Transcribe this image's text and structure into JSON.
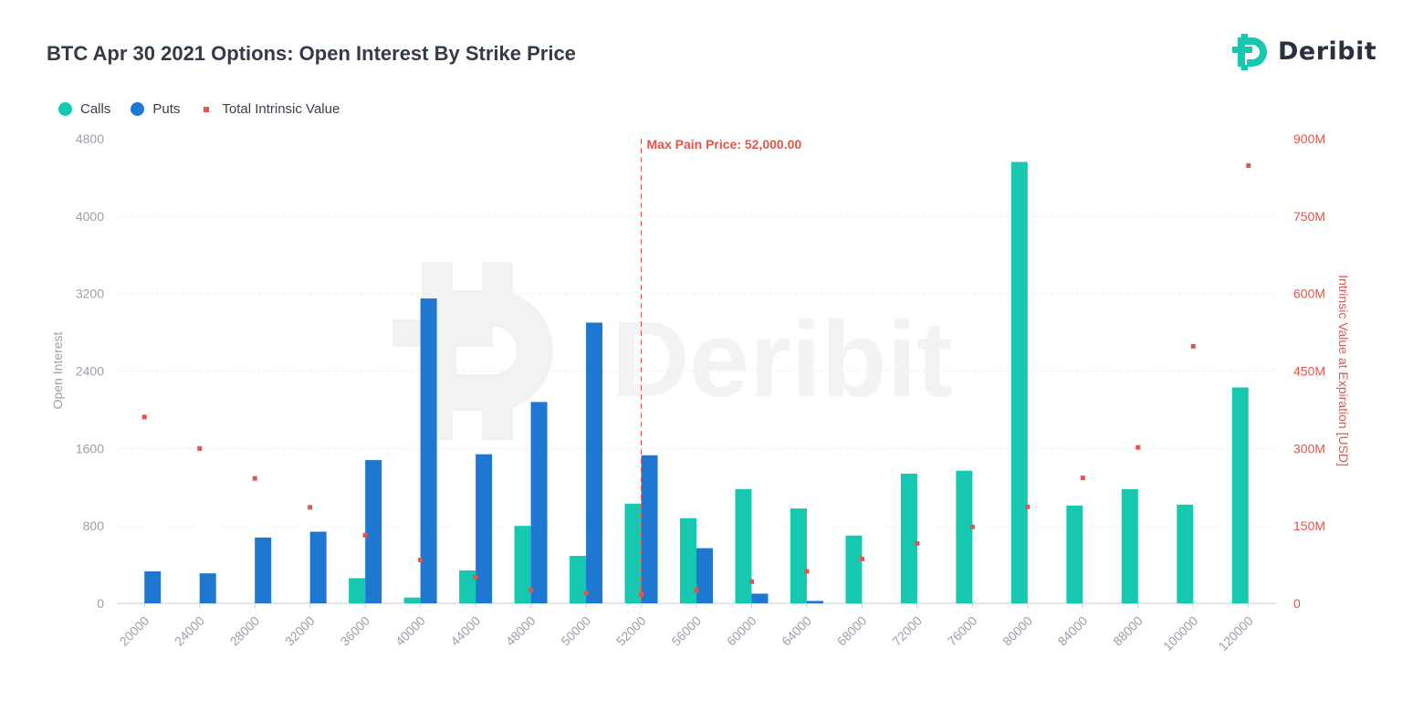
{
  "header": {
    "title": "BTC Apr 30 2021 Options: Open Interest By Strike Price",
    "logo_text": "Deribit"
  },
  "colors": {
    "calls": "#17c8b0",
    "puts": "#1e78d2",
    "intrinsic": "#e0564b",
    "title": "#343a48"
  },
  "chart_data": {
    "type": "bar",
    "title": "BTC Apr 30 2021 Options: Open Interest By Strike Price",
    "categories": [
      "20000",
      "24000",
      "28000",
      "32000",
      "36000",
      "40000",
      "44000",
      "48000",
      "50000",
      "52000",
      "56000",
      "60000",
      "64000",
      "68000",
      "72000",
      "76000",
      "80000",
      "84000",
      "88000",
      "100000",
      "120000"
    ],
    "series": [
      {
        "name": "Calls",
        "type": "bar",
        "axis": "left",
        "values": [
          0,
          0,
          0,
          0,
          260,
          60,
          340,
          800,
          490,
          1030,
          880,
          1180,
          980,
          700,
          1340,
          1370,
          4560,
          1010,
          1180,
          1020,
          2230
        ]
      },
      {
        "name": "Puts",
        "type": "bar",
        "axis": "left",
        "values": [
          330,
          310,
          680,
          740,
          1480,
          3150,
          1540,
          2080,
          2900,
          1530,
          570,
          100,
          25,
          0,
          0,
          0,
          0,
          0,
          0,
          0,
          0
        ]
      },
      {
        "name": "Total Intrinsic Value",
        "type": "scatter",
        "axis": "right",
        "values": [
          361,
          300,
          242,
          186,
          132,
          84,
          51,
          26,
          20,
          18,
          26,
          42,
          62,
          86,
          116,
          148,
          187,
          243,
          302,
          498,
          848
        ]
      }
    ],
    "left_axis": {
      "label": "Open Interest",
      "ylim": [
        0,
        4800
      ],
      "ticks": [
        "0",
        "800",
        "1600",
        "2400",
        "3200",
        "4000",
        "4800"
      ]
    },
    "right_axis": {
      "label": "Intrinsic Value at Expiration [USD]",
      "ylim": [
        0,
        900
      ],
      "ticks": [
        "0",
        "150M",
        "300M",
        "450M",
        "600M",
        "750M",
        "900M"
      ]
    },
    "max_pain": {
      "value": "52000",
      "label": "Max Pain Price: 52,000.00"
    },
    "watermark": "Deribit",
    "legend_position": "top-left",
    "grid": true
  }
}
